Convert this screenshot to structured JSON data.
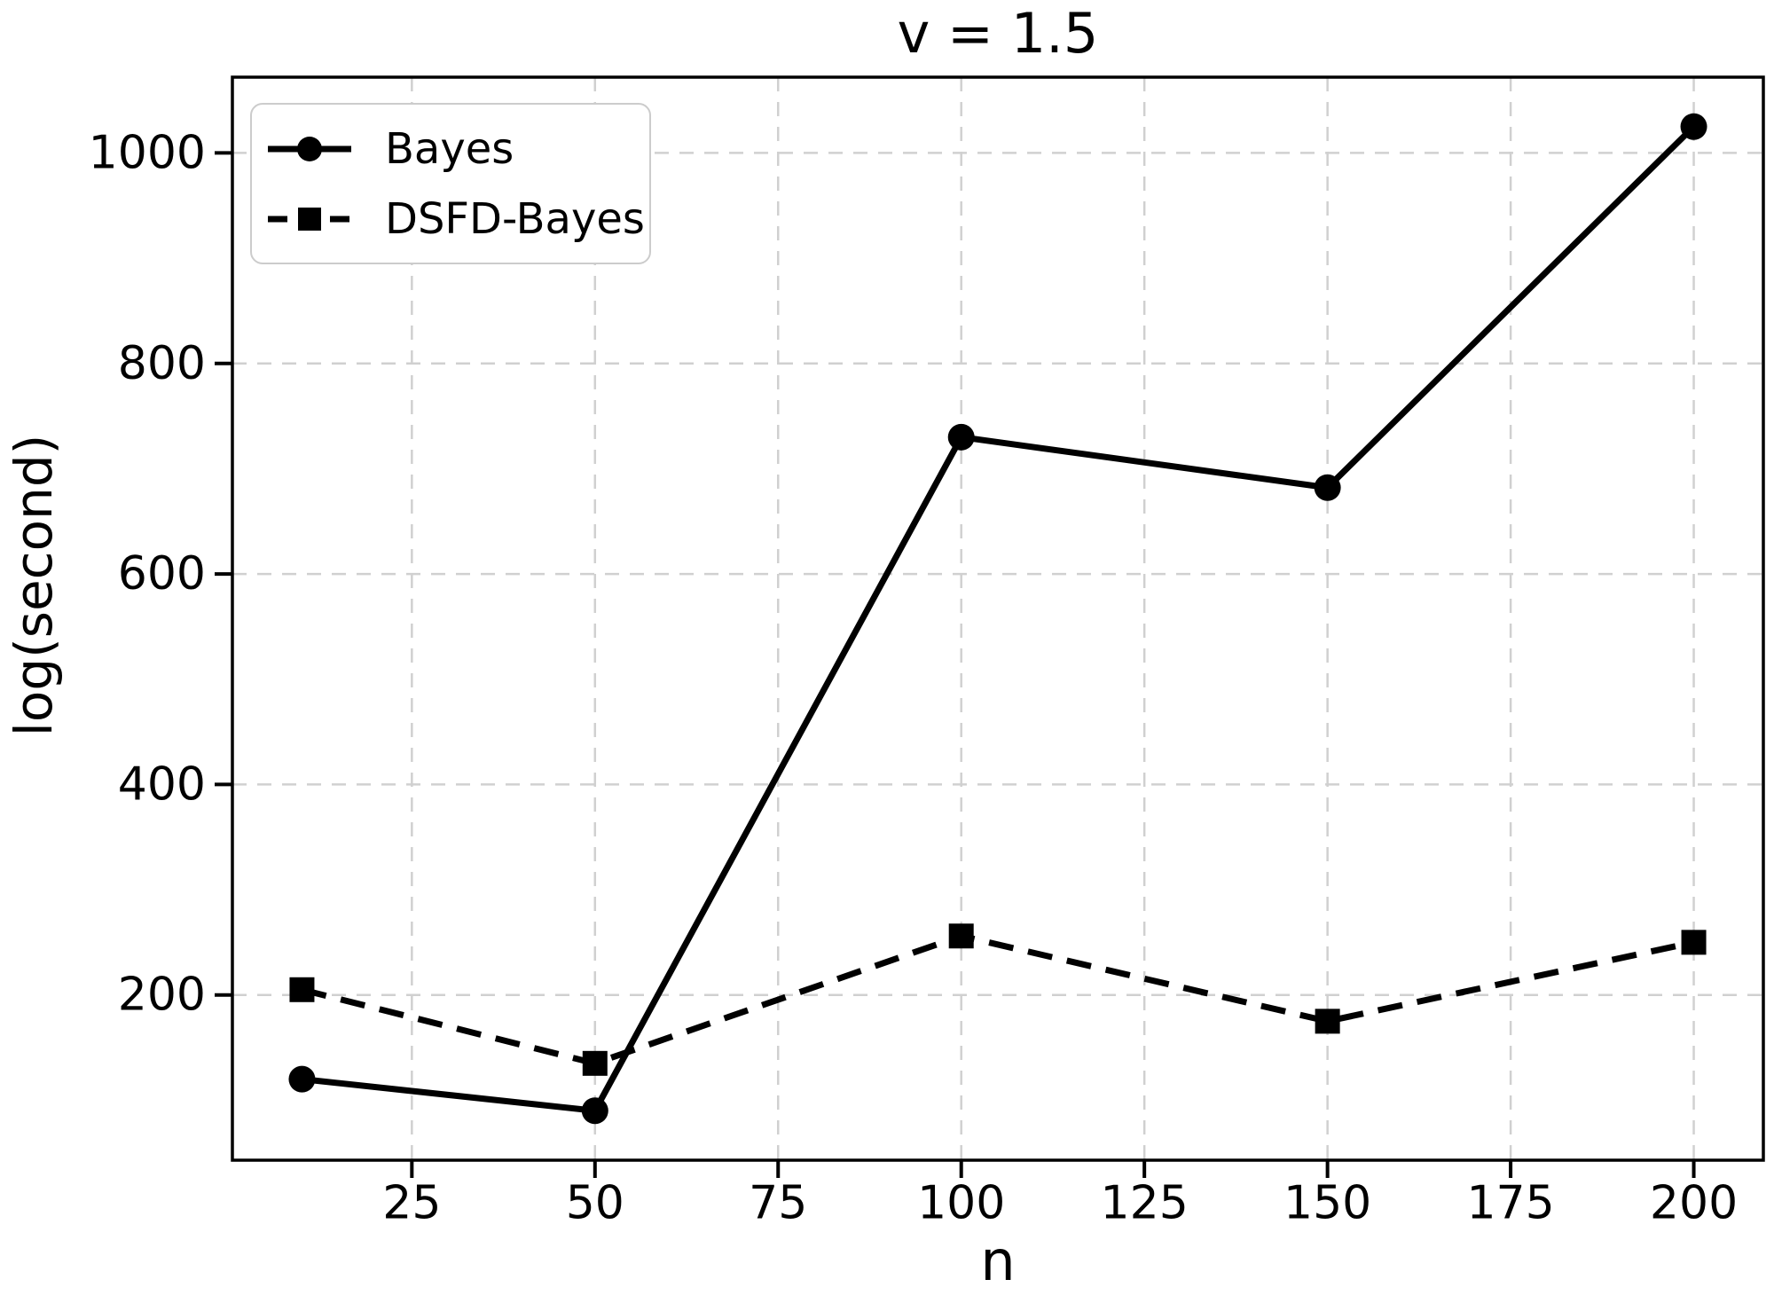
{
  "chart_data": {
    "type": "line",
    "title": "v = 1.5",
    "xlabel": "n",
    "ylabel": "log(second)",
    "x": [
      10,
      50,
      100,
      150,
      200
    ],
    "series": [
      {
        "name": "Bayes",
        "values": [
          120,
          90,
          730,
          682,
          1025
        ],
        "line_style": "solid",
        "marker": "circle",
        "color": "#000000"
      },
      {
        "name": "DSFD-Bayes",
        "values": [
          205,
          135,
          256,
          175,
          250
        ],
        "line_style": "dashed",
        "marker": "square",
        "color": "#000000"
      }
    ],
    "xticks": [
      25,
      50,
      75,
      100,
      125,
      150,
      175,
      200
    ],
    "yticks": [
      200,
      400,
      600,
      800,
      1000
    ],
    "xlim": [
      0.5,
      209.5
    ],
    "ylim": [
      43,
      1072
    ],
    "grid": true,
    "grid_color": "#d0d0d0",
    "axis_color": "#000000",
    "background": "#ffffff",
    "legend_position": "upper-left"
  }
}
